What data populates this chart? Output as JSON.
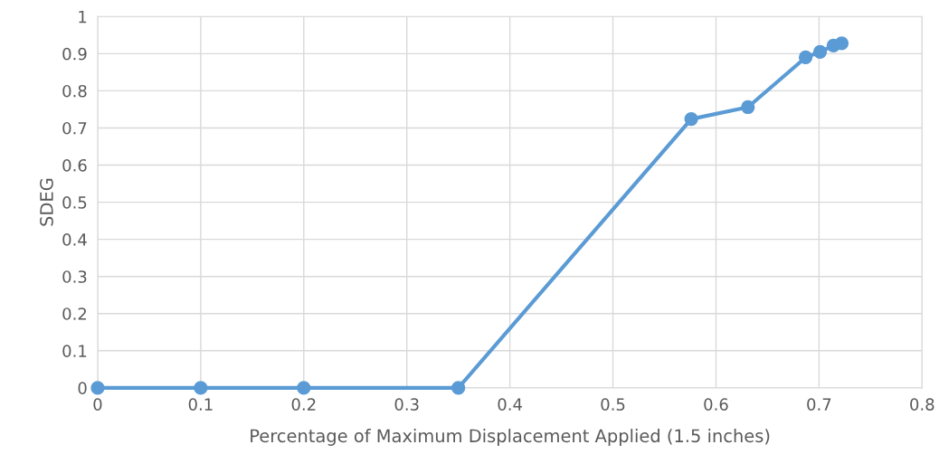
{
  "chart_data": {
    "type": "line",
    "xlabel": "Percentage of Maximum Displacement Applied (1.5 inches)",
    "ylabel": "SDEG",
    "x": [
      0,
      0.1,
      0.2,
      0.35,
      0.576,
      0.631,
      0.687,
      0.701,
      0.714,
      0.722
    ],
    "series": [
      {
        "color": "#5b9bd5",
        "values": [
          0,
          0,
          0,
          0,
          0.724,
          0.756,
          0.89,
          0.905,
          0.922,
          0.928
        ]
      }
    ],
    "xlim": [
      0,
      0.8
    ],
    "xticks": [
      0,
      0.1,
      0.2,
      0.3,
      0.4,
      0.5,
      0.6,
      0.7,
      0.8
    ],
    "ylim": [
      0,
      1
    ],
    "yticks": [
      0,
      0.1,
      0.2,
      0.3,
      0.4,
      0.5,
      0.6,
      0.7,
      0.8,
      0.9,
      1
    ],
    "grid": true,
    "marker": "circle",
    "line_style": "solid"
  }
}
